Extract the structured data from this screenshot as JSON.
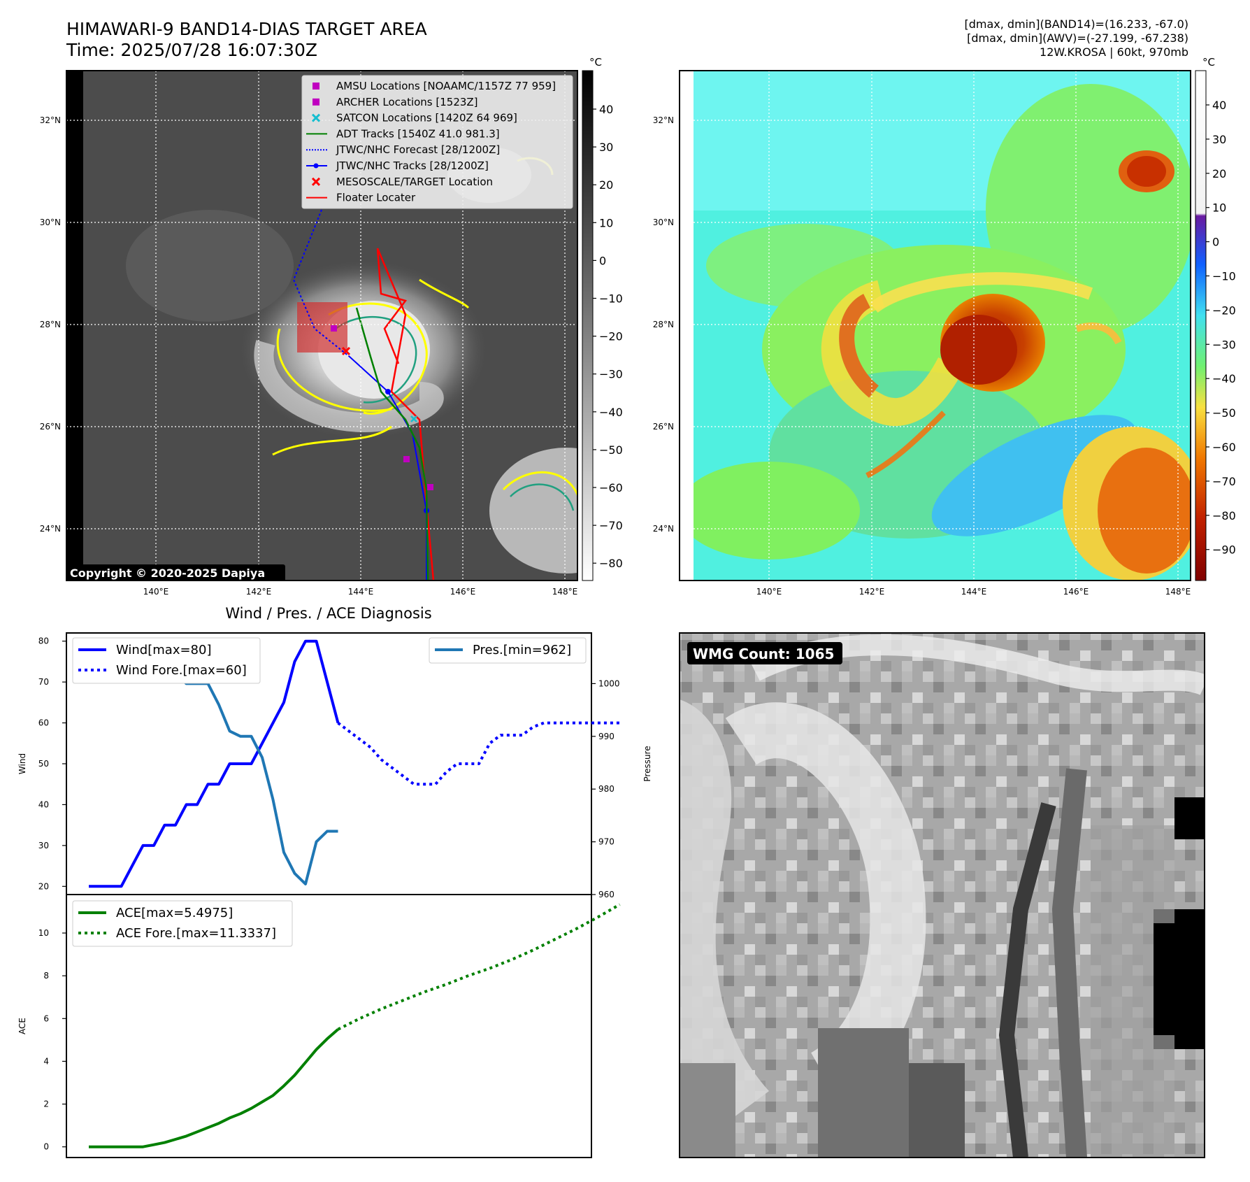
{
  "header": {
    "title": "HIMAWARI-9 BAND14-DIAS TARGET AREA",
    "time": "Time: 2025/07/28 16:07:30Z",
    "stats_band14": "[dmax, dmin](BAND14)=(16.233, -67.0)",
    "stats_awv": "[dmax, dmin](AWV)=(-27.199, -67.238)",
    "storm": "12W.KROSA | 60kt, 970mb"
  },
  "map": {
    "lat_labels": [
      "32°N",
      "30°N",
      "28°N",
      "26°N",
      "24°N"
    ],
    "lon_labels": [
      "140°E",
      "142°E",
      "144°E",
      "146°E",
      "148°E"
    ],
    "copyright": "Copyright © 2020-2025 Dapiya",
    "colorbar_left": {
      "unit": "°C",
      "ticks": [
        "40",
        "30",
        "20",
        "10",
        "0",
        "−10",
        "−20",
        "−30",
        "−40",
        "−50",
        "−60",
        "−70",
        "−80"
      ]
    },
    "colorbar_right": {
      "unit": "°C",
      "ticks": [
        "40",
        "30",
        "20",
        "10",
        "0",
        "−10",
        "−20",
        "−30",
        "−40",
        "−50",
        "−60",
        "−70",
        "−80",
        "−90"
      ]
    },
    "legend": [
      {
        "label": "AMSU Locations [NOAAMC/1157Z 77 959]",
        "color": "#c000c0",
        "marker": "square"
      },
      {
        "label": "ARCHER Locations [1523Z]",
        "color": "#c000c0",
        "marker": "square"
      },
      {
        "label": "SATCON Locations [1420Z 64 969]",
        "color": "#17becf",
        "marker": "x"
      },
      {
        "label": "ADT Tracks [1540Z 41.0 981.3]",
        "color": "#008000",
        "marker": "line"
      },
      {
        "label": "JTWC/NHC Forecast [28/1200Z]",
        "color": "#0000ff",
        "marker": "dotted"
      },
      {
        "label": "JTWC/NHC Tracks [28/1200Z]",
        "color": "#0000ff",
        "marker": "line-dot"
      },
      {
        "label": "MESOSCALE/TARGET Location",
        "color": "#ff0000",
        "marker": "x"
      },
      {
        "label": "Floater Locater",
        "color": "#ff0000",
        "marker": "line"
      }
    ]
  },
  "wmg": {
    "label": "WMG Count: 1065"
  },
  "chart_data": [
    {
      "type": "line",
      "title": "Wind / Pres. / ACE Diagnosis",
      "ylabel": "Wind",
      "y2label": "Pressure",
      "ylim": [
        18,
        82
      ],
      "y2lim": [
        960,
        1010
      ],
      "yticks": [
        "80",
        "70",
        "60",
        "50",
        "40",
        "30",
        "20"
      ],
      "y2ticks": [
        "1000",
        "990",
        "980",
        "970",
        "960"
      ],
      "series": [
        {
          "name": "Wind[max=80]",
          "color": "#0000ff",
          "style": "solid",
          "x": [
            0,
            1,
            2,
            3,
            4,
            5,
            6,
            7,
            8,
            9,
            10,
            11,
            12,
            13,
            14,
            15,
            16,
            17,
            18,
            19,
            20,
            21,
            22,
            23
          ],
          "values": [
            20,
            20,
            20,
            20,
            25,
            30,
            30,
            35,
            35,
            40,
            40,
            45,
            45,
            50,
            50,
            50,
            55,
            60,
            65,
            75,
            80,
            80,
            70,
            60
          ]
        },
        {
          "name": "Wind Fore.[max=60]",
          "color": "#0000ff",
          "style": "dotted",
          "x": [
            23,
            24,
            25,
            26,
            27,
            28,
            29,
            30,
            31,
            32,
            33,
            34,
            35,
            36,
            37,
            38,
            39,
            40,
            41,
            42,
            43,
            44,
            45,
            46,
            47,
            48,
            49
          ],
          "values": [
            60,
            58,
            56,
            54,
            51,
            49,
            47,
            45,
            45,
            45,
            48,
            50,
            50,
            50,
            55,
            57,
            57,
            57,
            59,
            60,
            60,
            60,
            60,
            60,
            60,
            60,
            60
          ]
        },
        {
          "name": "Pres.[min=962]",
          "color": "#1f77b4",
          "style": "solid",
          "axis": "right",
          "x": [
            0,
            1,
            2,
            3,
            4,
            5,
            6,
            7,
            8,
            9,
            10,
            11,
            12,
            13,
            14,
            15,
            16,
            17,
            18,
            19,
            20,
            21,
            22,
            23
          ],
          "values": [
            1008,
            1008,
            1008,
            1006,
            1006,
            1005,
            1005,
            1002,
            1002,
            1000,
            1000,
            1000,
            996,
            991,
            990,
            990,
            986,
            978,
            968,
            964,
            962,
            970,
            972,
            972
          ]
        }
      ]
    },
    {
      "type": "line",
      "ylabel": "ACE",
      "ylim": [
        -0.5,
        11.8
      ],
      "yticks": [
        "10",
        "8",
        "6",
        "4",
        "2",
        "0"
      ],
      "series": [
        {
          "name": "ACE[max=5.4975]",
          "color": "#008000",
          "style": "solid",
          "x": [
            0,
            1,
            2,
            3,
            4,
            5,
            6,
            7,
            8,
            9,
            10,
            11,
            12,
            13,
            14,
            15,
            16,
            17,
            18,
            19,
            20,
            21,
            22,
            23
          ],
          "values": [
            0,
            0,
            0,
            0,
            0,
            0,
            0.1,
            0.2,
            0.35,
            0.5,
            0.7,
            0.9,
            1.1,
            1.35,
            1.55,
            1.8,
            2.1,
            2.4,
            2.85,
            3.35,
            3.95,
            4.55,
            5.05,
            5.4975
          ]
        },
        {
          "name": "ACE Fore.[max=11.3337]",
          "color": "#008000",
          "style": "dotted",
          "x": [
            23,
            25,
            27,
            29,
            31,
            33,
            35,
            37,
            39,
            41,
            43,
            45,
            47,
            49
          ],
          "values": [
            5.4975,
            6.0,
            6.45,
            6.85,
            7.25,
            7.6,
            8.0,
            8.35,
            8.75,
            9.2,
            9.7,
            10.2,
            10.75,
            11.3337
          ]
        }
      ]
    }
  ]
}
